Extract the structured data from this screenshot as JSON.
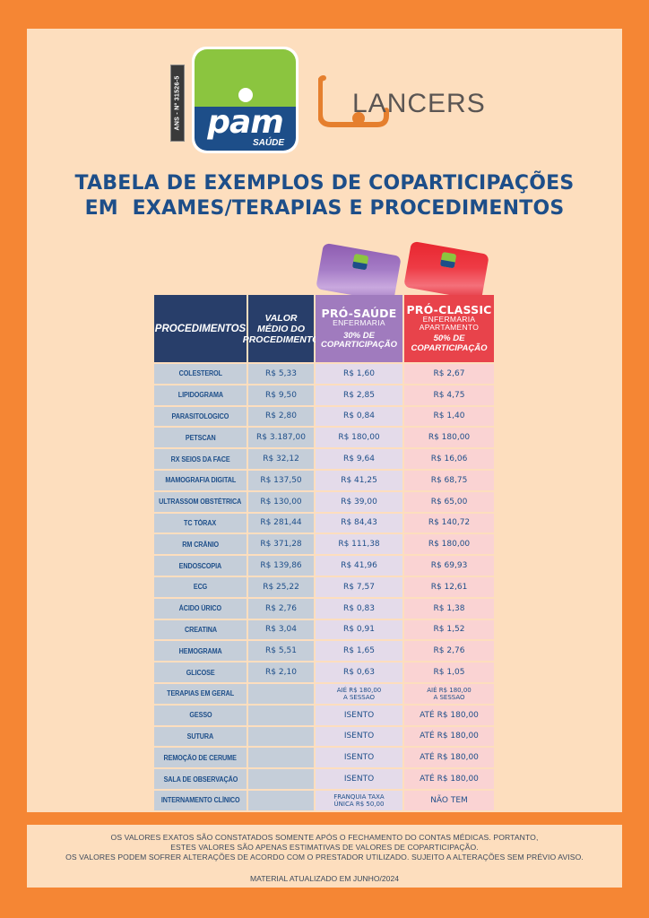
{
  "colors": {
    "frame": "#F58634",
    "panel": "#FDDEBE",
    "navy": "#1D4E89",
    "header_dark": "#283E6A",
    "pro_saude": "#A07BBE",
    "pro_classic": "#E8434B",
    "pam_green": "#8BC53F"
  },
  "logos": {
    "ans_tag": "ANS - Nº 31526-5",
    "pam_word": "pam",
    "pam_sub": "SAÚDE",
    "lancers": "LANCERS"
  },
  "title": {
    "line1": "TABELA DE EXEMPLOS DE COPARTICIPAÇÕES",
    "line2": "EM  EXAMES/TERAPIAS E PROCEDIMENTOS"
  },
  "table": {
    "headers": {
      "procedimentos": "PROCEDIMENTOS",
      "valor_line1": "VALOR",
      "valor_line2": "MÉDIO DO",
      "valor_line3": "PROCEDIMENTO",
      "pro_saude": {
        "name": "PRÓ-SAÚDE",
        "sub1": "ENFERMARIA",
        "pct1": "30% DE",
        "pct2": "COPARTICIPAÇÃO"
      },
      "pro_classic": {
        "name": "PRÓ-CLASSIC",
        "sub1": "ENFERMARIA",
        "sub2": "APARTAMENTO",
        "pct1": "50% DE",
        "pct2": "COPARTICIPAÇÃO"
      }
    },
    "rows": [
      {
        "proc": "COLESTEROL",
        "valor": "R$ 5,33",
        "saude": "R$ 1,60",
        "classic": "R$ 2,67"
      },
      {
        "proc": "LIPIDOGRAMA",
        "valor": "R$ 9,50",
        "saude": "R$ 2,85",
        "classic": "R$ 4,75"
      },
      {
        "proc": "PARASITOLOGICO",
        "valor": "R$ 2,80",
        "saude": "R$ 0,84",
        "classic": "R$ 1,40"
      },
      {
        "proc": "PETSCAN",
        "valor": "R$ 3.187,00",
        "saude": "R$ 180,00",
        "classic": "R$ 180,00"
      },
      {
        "proc": "RX SEIOS DA FACE",
        "valor": "R$ 32,12",
        "saude": "R$ 9,64",
        "classic": "R$ 16,06"
      },
      {
        "proc": "MAMOGRAFIA DIGITAL",
        "valor": "R$ 137,50",
        "saude": "R$ 41,25",
        "classic": "R$ 68,75"
      },
      {
        "proc": "ULTRASSOM OBSTÉTRICA",
        "valor": "R$ 130,00",
        "saude": "R$ 39,00",
        "classic": "R$ 65,00"
      },
      {
        "proc": "TC TÓRAX",
        "valor": "R$ 281,44",
        "saude": "R$ 84,43",
        "classic": "R$ 140,72"
      },
      {
        "proc": "RM CRÂNIO",
        "valor": "R$ 371,28",
        "saude": "R$ 111,38",
        "classic": "R$ 180,00"
      },
      {
        "proc": "ENDOSCOPIA",
        "valor": "R$ 139,86",
        "saude": "R$ 41,96",
        "classic": "R$ 69,93"
      },
      {
        "proc": "ECG",
        "valor": "R$ 25,22",
        "saude": "R$ 7,57",
        "classic": "R$ 12,61"
      },
      {
        "proc": "ÁCIDO ÚRICO",
        "valor": "R$ 2,76",
        "saude": "R$ 0,83",
        "classic": "R$ 1,38"
      },
      {
        "proc": "CREATINA",
        "valor": "R$ 3,04",
        "saude": "R$ 0,91",
        "classic": "R$ 1,52"
      },
      {
        "proc": "HEMOGRAMA",
        "valor": "R$ 5,51",
        "saude": "R$ 1,65",
        "classic": "R$ 2,76"
      },
      {
        "proc": "GLICOSE",
        "valor": "R$ 2,10",
        "saude": "R$ 0,63",
        "classic": "R$ 1,05"
      },
      {
        "proc": "TERAPIAS EM GERAL",
        "valor": "",
        "saude_l1": "AIÉ R$ 180,00",
        "saude_l2": "A SESSAO",
        "classic_l1": "AIÉ R$ 180,00",
        "classic_l2": "A SESSAO"
      },
      {
        "proc": "GESSO",
        "valor": "",
        "saude": "ISENTO",
        "classic": "ATÉ R$ 180,00"
      },
      {
        "proc": "SUTURA",
        "valor": "",
        "saude": "ISENTO",
        "classic": "ATÉ R$ 180,00"
      },
      {
        "proc": "REMOÇÃO DE CERUME",
        "valor": "",
        "saude": "ISENTO",
        "classic": "ATÉ R$ 180,00"
      },
      {
        "proc": "SALA DE OBSERVAÇÃO",
        "valor": "",
        "saude": "ISENTO",
        "classic": "ATÉ R$ 180,00"
      },
      {
        "proc": "INTERNAMENTO CLÍNICO",
        "valor": "",
        "saude_l1": "FRANQUIA TAXA",
        "saude_l2": "ÚNICA R$ 50,00",
        "classic": "NÃO TEM"
      }
    ]
  },
  "footer": {
    "line1": "OS VALORES EXATOS SÃO CONSTATADOS SOMENTE APÓS O FECHAMENTO DO CONTAS MÉDICAS. PORTANTO,",
    "line2": "ESTES VALORES SÃO APENAS ESTIMATIVAS DE VALORES DE COPARTICIPAÇÃO.",
    "line3": "OS VALORES PODEM SOFRER ALTERAÇÕES DE ACORDO COM O PRESTADOR UTILIZADO. SUJEITO A ALTERAÇÕES SEM PRÉVIO AVISO.",
    "updated": "MATERIAL ATUALIZADO EM JUNHO/2024"
  }
}
